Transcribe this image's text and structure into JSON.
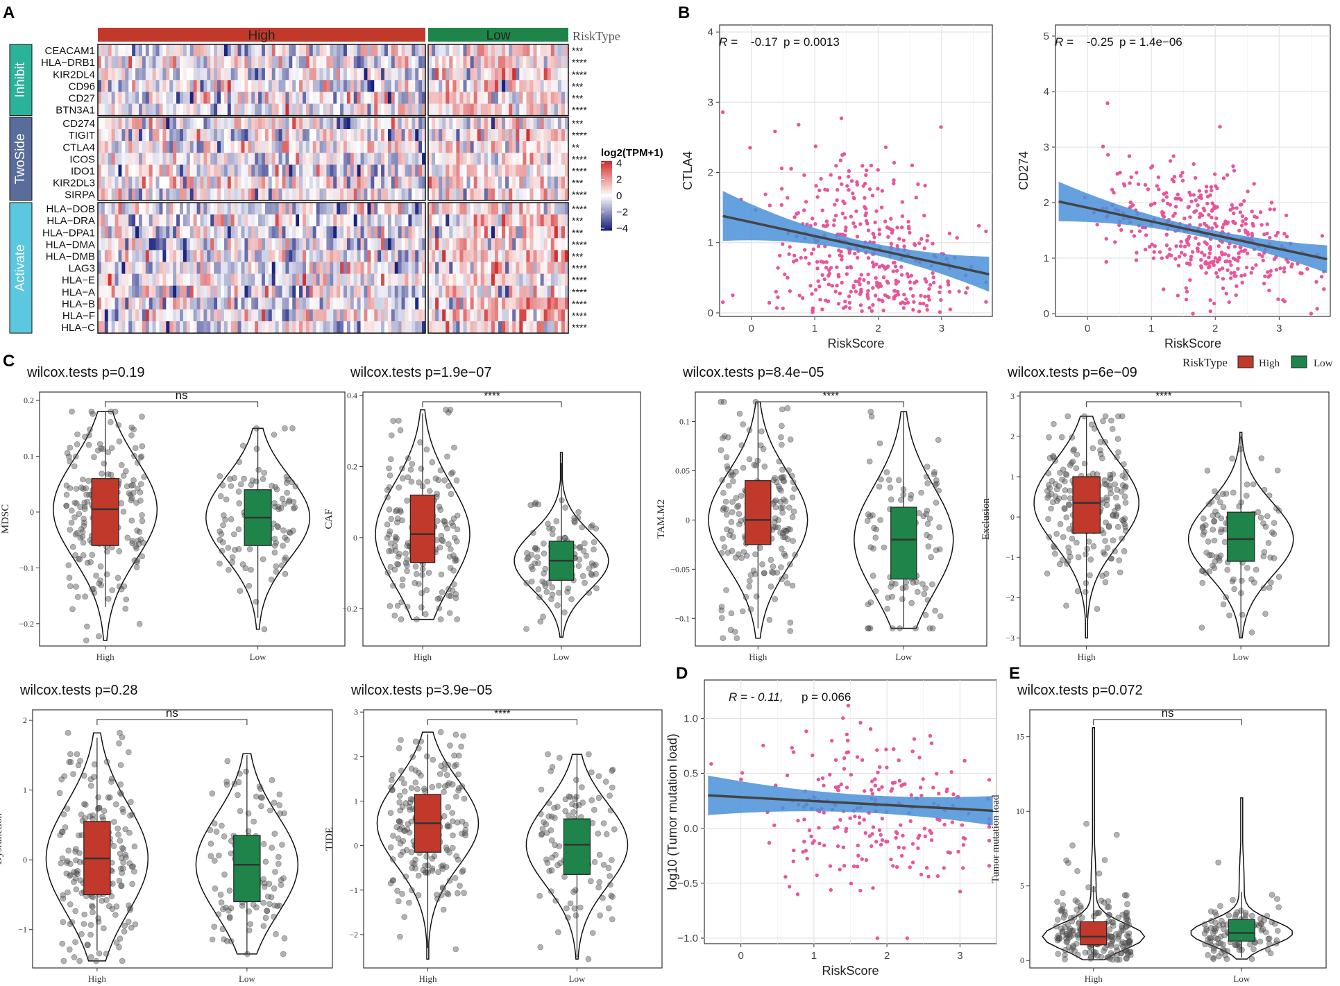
{
  "colors": {
    "high": "#C0392B",
    "low": "#1E8449",
    "point": "#E8559A",
    "fit_band": "#4A90D9",
    "fit_line": "#444444",
    "group_inhibit": "#2BB39A",
    "group_twoside": "#5A6C9A",
    "group_activate": "#5BC8E0",
    "heat_low": "#1A237E",
    "heat_mid": "#FFFFFF",
    "heat_high": "#D32F2F"
  },
  "panels": {
    "A": "A",
    "B": "B",
    "C": "C",
    "D": "D",
    "E": "E"
  },
  "heatmap": {
    "risktype_label": "RiskType",
    "high_label": "High",
    "low_label": "Low",
    "legend_title": "log2(TPM+1)",
    "legend_ticks": [
      "4",
      "2",
      "0",
      "−2",
      "−4"
    ],
    "groups": [
      {
        "name": "Inhibit",
        "genes": [
          "CEACAM1",
          "HLA−DRB1",
          "KIR2DL4",
          "CD96",
          "CD27",
          "BTN3A1"
        ],
        "sig": [
          "***",
          "****",
          "****",
          "***",
          "***",
          "****"
        ]
      },
      {
        "name": "TwoSide",
        "genes": [
          "CD274",
          "TIGIT",
          "CTLA4",
          "ICOS",
          "IDO1",
          "KIR2DL3",
          "SIRPA"
        ],
        "sig": [
          "***",
          "****",
          "**",
          "****",
          "****",
          "***",
          "****"
        ]
      },
      {
        "name": "Activate",
        "genes": [
          "HLA−DOB",
          "HLA−DRA",
          "HLA−DPA1",
          "HLA−DMA",
          "HLA−DMB",
          "LAG3",
          "HLA−E",
          "HLA−A",
          "HLA−B",
          "HLA−F",
          "HLA−C"
        ],
        "sig": [
          "****",
          "***",
          "***",
          "****",
          "***",
          "****",
          "****",
          "****",
          "****",
          "****",
          "****"
        ]
      }
    ]
  },
  "legend_risktype": {
    "title": "RiskType",
    "high": "High",
    "low": "Low"
  },
  "chart_data": [
    {
      "id": "B1",
      "type": "scatter",
      "title": "",
      "xlabel": "RiskScore",
      "ylabel": "CTLA4",
      "annotation": {
        "r_label": "R =",
        "r_value": "-0.17",
        "p_text": "p = 0.0013"
      },
      "xlim": [
        -0.5,
        3.8
      ],
      "ylim": [
        -0.05,
        4.1
      ],
      "xticks": [
        0,
        1,
        2,
        3
      ],
      "yticks": [
        0,
        1,
        2,
        3,
        4
      ],
      "fit": {
        "x": [
          -0.45,
          3.75
        ],
        "y": [
          1.38,
          0.55
        ],
        "band_start": 0.22,
        "band_end": 0.18
      }
    },
    {
      "id": "B2",
      "type": "scatter",
      "title": "",
      "xlabel": "RiskScore",
      "ylabel": "CD274",
      "annotation": {
        "r_label": "R =",
        "r_value": "-0.25",
        "p_text": "p = 1.4e−06"
      },
      "xlim": [
        -0.5,
        3.8
      ],
      "ylim": [
        -0.05,
        5.2
      ],
      "xticks": [
        0,
        1,
        2,
        3
      ],
      "yticks": [
        0,
        1,
        2,
        3,
        4,
        5
      ],
      "fit": {
        "x": [
          -0.45,
          3.75
        ],
        "y": [
          2.02,
          0.98
        ],
        "band_start": 0.22,
        "band_end": 0.18
      }
    },
    {
      "id": "D",
      "type": "scatter",
      "title": "",
      "xlabel": "RiskScore",
      "ylabel": "log10 (Tumor mutation load)",
      "annotation": {
        "r_label": "R = - 0.11,",
        "r_value": "",
        "p_text": "p = 0.066"
      },
      "xlim": [
        -0.5,
        3.5
      ],
      "ylim": [
        -1.05,
        1.35
      ],
      "xticks": [
        0,
        1,
        2,
        3
      ],
      "yticks": [
        -1.0,
        -0.5,
        0.0,
        0.5,
        1.0
      ],
      "fit": {
        "x": [
          -0.45,
          3.45
        ],
        "y": [
          0.3,
          0.16
        ],
        "band_start": 0.08,
        "band_end": 0.08
      }
    },
    {
      "id": "C1",
      "type": "violin",
      "title": "wilcox.tests p=0.19",
      "ylabel": "MDSC",
      "categories": [
        "High",
        "Low"
      ],
      "sig": "ns",
      "ylim": [
        -0.24,
        0.215
      ],
      "yticks": [
        -0.2,
        -0.1,
        0.0,
        0.1,
        0.2
      ],
      "box": [
        {
          "q1": -0.06,
          "median": 0.005,
          "q3": 0.06,
          "min": -0.17,
          "max": 0.18
        },
        {
          "q1": -0.06,
          "median": -0.01,
          "q3": 0.04,
          "min": -0.19,
          "max": 0.15
        }
      ],
      "range": [
        [
          -0.23,
          0.18
        ],
        [
          -0.21,
          0.15
        ]
      ]
    },
    {
      "id": "C2",
      "type": "violin",
      "title": "wilcox.tests p=1.9e−07",
      "ylabel": "CAF",
      "categories": [
        "High",
        "Low"
      ],
      "sig": "****",
      "ylim": [
        -0.305,
        0.41
      ],
      "yticks": [
        -0.2,
        0.0,
        0.2,
        0.4
      ],
      "box": [
        {
          "q1": -0.07,
          "median": 0.01,
          "q3": 0.12,
          "min": -0.22,
          "max": 0.35
        },
        {
          "q1": -0.12,
          "median": -0.065,
          "q3": -0.01,
          "min": -0.28,
          "max": 0.21
        }
      ],
      "range": [
        [
          -0.23,
          0.36
        ],
        [
          -0.28,
          0.24
        ]
      ]
    },
    {
      "id": "C3",
      "type": "violin",
      "title": "wilcox.tests p=8.4e−05",
      "ylabel": "TAM.M2",
      "categories": [
        "High",
        "Low"
      ],
      "sig": "****",
      "ylim": [
        -0.128,
        0.13
      ],
      "yticks": [
        -0.1,
        -0.05,
        0.0,
        0.05,
        0.1
      ],
      "box": [
        {
          "q1": -0.025,
          "median": 0.0,
          "q3": 0.04,
          "min": -0.11,
          "max": 0.12
        },
        {
          "q1": -0.06,
          "median": -0.02,
          "q3": 0.013,
          "min": -0.11,
          "max": 0.11
        }
      ],
      "range": [
        [
          -0.12,
          0.12
        ],
        [
          -0.11,
          0.11
        ]
      ]
    },
    {
      "id": "C4",
      "type": "violin",
      "title": "wilcox.tests p=6e−09",
      "ylabel": "Exclusion",
      "categories": [
        "High",
        "Low"
      ],
      "sig": "****",
      "ylim": [
        -3.2,
        3.1
      ],
      "yticks": [
        -3,
        -2,
        -1,
        0,
        1,
        2,
        3
      ],
      "box": [
        {
          "q1": -0.4,
          "median": 0.35,
          "q3": 1.0,
          "min": -2.5,
          "max": 2.5
        },
        {
          "q1": -1.1,
          "median": -0.55,
          "q3": 0.12,
          "min": -3.0,
          "max": 2.0
        }
      ],
      "range": [
        [
          -3.0,
          2.5
        ],
        [
          -3.0,
          2.1
        ]
      ]
    },
    {
      "id": "C5",
      "type": "violin",
      "title": "wilcox.tests p=0.28",
      "ylabel": "Dysfunction",
      "categories": [
        "High",
        "Low"
      ],
      "sig": "ns",
      "ylim": [
        -1.55,
        2.15
      ],
      "yticks": [
        -1,
        0,
        1,
        2
      ],
      "box": [
        {
          "q1": -0.5,
          "median": 0.02,
          "q3": 0.55,
          "min": -1.3,
          "max": 1.75
        },
        {
          "q1": -0.6,
          "median": -0.07,
          "q3": 0.35,
          "min": -1.35,
          "max": 1.5
        }
      ],
      "range": [
        [
          -1.45,
          1.82
        ],
        [
          -1.35,
          1.52
        ]
      ]
    },
    {
      "id": "C6",
      "type": "violin",
      "title": "wilcox.tests p=3.9e−05",
      "ylabel": "TIDE",
      "categories": [
        "High",
        "Low"
      ],
      "sig": "****",
      "ylim": [
        -2.75,
        3.05
      ],
      "yticks": [
        -2,
        -1,
        0,
        1,
        2,
        3
      ],
      "box": [
        {
          "q1": -0.15,
          "median": 0.5,
          "q3": 1.15,
          "min": -2.3,
          "max": 2.5
        },
        {
          "q1": -0.65,
          "median": 0.02,
          "q3": 0.6,
          "min": -2.5,
          "max": 2.05
        }
      ],
      "range": [
        [
          -2.55,
          2.55
        ],
        [
          -2.55,
          2.05
        ]
      ]
    },
    {
      "id": "E",
      "type": "violin",
      "title": "wilcox.tests p=0.072",
      "ylabel": "Tumor mutation load",
      "categories": [
        "High",
        "Low"
      ],
      "sig": "ns",
      "ylim": [
        -0.5,
        16.8
      ],
      "yticks": [
        0,
        5,
        10,
        15
      ],
      "box": [
        {
          "q1": 1.05,
          "median": 1.6,
          "q3": 2.6,
          "min": 0.1,
          "max": 5.0
        },
        {
          "q1": 1.3,
          "median": 1.85,
          "q3": 2.75,
          "min": 0.2,
          "max": 4.6
        }
      ],
      "range": [
        [
          0.05,
          15.6
        ],
        [
          0.1,
          10.9
        ]
      ]
    }
  ]
}
